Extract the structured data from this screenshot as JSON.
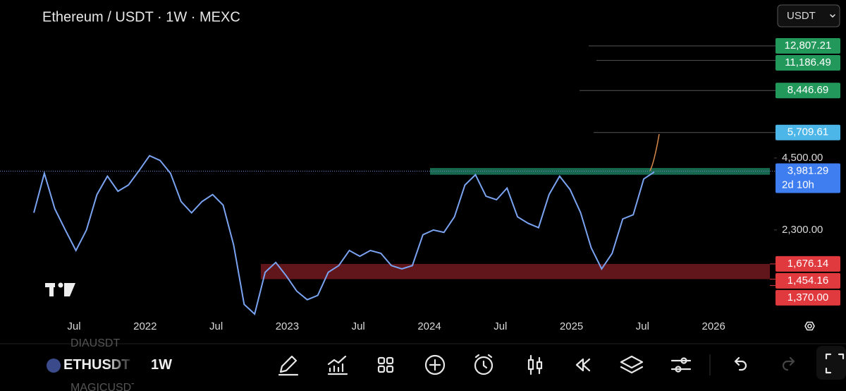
{
  "header": {
    "title": "Ethereum / USDT · 1W · MEXC",
    "currency": "USDT"
  },
  "chart_data": {
    "type": "line",
    "color": "#7aa3f2",
    "log_scale": true,
    "ylim": [
      1085,
      15100
    ],
    "x_labels": [
      "Jul",
      "2022",
      "Jul",
      "2023",
      "Jul",
      "2024",
      "Jul",
      "2025",
      "Jul",
      "2026"
    ],
    "values": [
      2700,
      3900,
      2800,
      2300,
      1900,
      2300,
      3200,
      3800,
      3300,
      3500,
      4000,
      4600,
      4400,
      3900,
      3000,
      2700,
      3000,
      3200,
      2900,
      2000,
      1150,
      1050,
      1550,
      1700,
      1500,
      1300,
      1200,
      1250,
      1550,
      1650,
      1900,
      1800,
      1900,
      1850,
      1650,
      1600,
      1650,
      2200,
      2300,
      2250,
      2600,
      3500,
      3850,
      3150,
      3050,
      3400,
      2600,
      2450,
      2350,
      3200,
      3800,
      3350,
      2700,
      1950,
      1600,
      1850,
      2550,
      2650,
      3700,
      3950
    ],
    "yticks": [
      {
        "value": 4500,
        "label": "4,500.00"
      },
      {
        "value": 2300,
        "label": "2,300.00"
      }
    ],
    "price_tags": [
      {
        "value": 12807.21,
        "label": "12,807.21",
        "color": "#22995a"
      },
      {
        "value": 11186.49,
        "label": "11,186.49",
        "color": "#22995a"
      },
      {
        "value": 8446.69,
        "label": "8,446.69",
        "color": "#22995a"
      },
      {
        "value": 5709.61,
        "label": "5,709.61",
        "color": "#4db6e8"
      },
      {
        "value": 3981.29,
        "label": "3,981.29",
        "countdown": "2d 10h",
        "color": "#3f7ef0"
      },
      {
        "value": 1676.14,
        "label": "1,676.14",
        "color": "#e0393e"
      },
      {
        "value": 1454.16,
        "label": "1,454.16",
        "color": "#e0393e"
      },
      {
        "value": 1370,
        "label": "1,370.00",
        "color": "#e0393e"
      }
    ],
    "zones": [
      {
        "low": 3850,
        "high": 4100,
        "color": "#1c7a5e"
      },
      {
        "low": 1454.16,
        "high": 1676.14,
        "color": "#8a1f28"
      }
    ]
  },
  "toolbar": {
    "symbol": "ETHUSDT",
    "interval": "1W",
    "watchlist": [
      "DIAUSDT",
      "MAGICUSDT"
    ]
  }
}
